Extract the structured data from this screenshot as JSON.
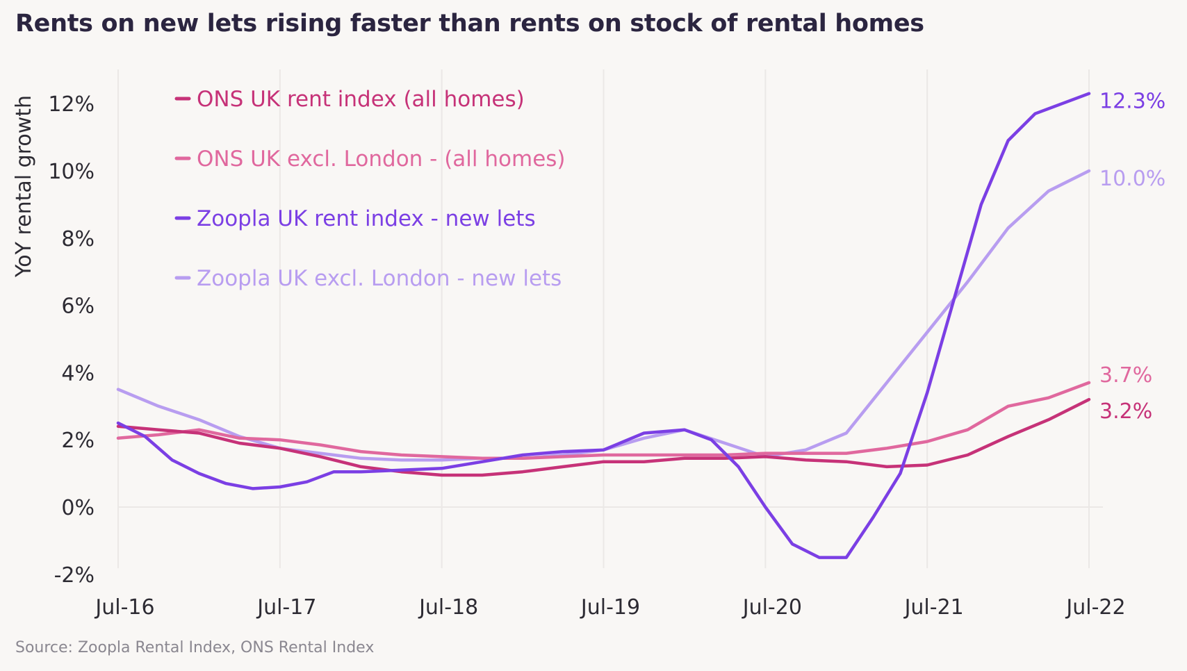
{
  "title": "Rents on new lets rising faster than rents on stock of rental homes",
  "source": "Source: Zoopla Rental Index, ONS Rental Index",
  "chart_data": {
    "type": "line",
    "title": "Rents on new lets rising faster than rents on stock of rental homes",
    "ylabel": "YoY rental growth",
    "xlabel": "",
    "x_ticks": [
      "Jul-16",
      "Jul-17",
      "Jul-18",
      "Jul-19",
      "Jul-20",
      "Jul-21",
      "Jul-22"
    ],
    "y_ticks": [
      "-2%",
      "0%",
      "2%",
      "4%",
      "6%",
      "8%",
      "10%",
      "12%"
    ],
    "ylim": [
      -2,
      12.8
    ],
    "xlim": [
      "2016-07",
      "2022-07"
    ],
    "grid": "vertical",
    "legend_position": "top-left",
    "series": [
      {
        "name": "ONS UK rent index (all homes)",
        "color": "#c63278",
        "end_label": "3.2%",
        "points": [
          [
            "2016-07",
            2.4
          ],
          [
            "2016-10",
            2.3
          ],
          [
            "2017-01",
            2.2
          ],
          [
            "2017-04",
            1.9
          ],
          [
            "2017-07",
            1.75
          ],
          [
            "2017-10",
            1.5
          ],
          [
            "2018-01",
            1.2
          ],
          [
            "2018-04",
            1.05
          ],
          [
            "2018-07",
            0.95
          ],
          [
            "2018-10",
            0.95
          ],
          [
            "2019-01",
            1.05
          ],
          [
            "2019-04",
            1.2
          ],
          [
            "2019-07",
            1.35
          ],
          [
            "2019-10",
            1.35
          ],
          [
            "2020-01",
            1.45
          ],
          [
            "2020-04",
            1.45
          ],
          [
            "2020-07",
            1.5
          ],
          [
            "2020-10",
            1.4
          ],
          [
            "2021-01",
            1.35
          ],
          [
            "2021-04",
            1.2
          ],
          [
            "2021-07",
            1.25
          ],
          [
            "2021-10",
            1.55
          ],
          [
            "2022-01",
            2.1
          ],
          [
            "2022-04",
            2.6
          ],
          [
            "2022-07",
            3.2
          ]
        ]
      },
      {
        "name": "ONS UK excl. London - (all homes)",
        "color": "#e0689e",
        "end_label": "3.7%",
        "points": [
          [
            "2016-07",
            2.05
          ],
          [
            "2016-10",
            2.15
          ],
          [
            "2017-01",
            2.3
          ],
          [
            "2017-04",
            2.05
          ],
          [
            "2017-07",
            2.0
          ],
          [
            "2017-10",
            1.85
          ],
          [
            "2018-01",
            1.65
          ],
          [
            "2018-04",
            1.55
          ],
          [
            "2018-07",
            1.5
          ],
          [
            "2018-10",
            1.45
          ],
          [
            "2019-01",
            1.45
          ],
          [
            "2019-04",
            1.5
          ],
          [
            "2019-07",
            1.55
          ],
          [
            "2019-10",
            1.55
          ],
          [
            "2020-01",
            1.55
          ],
          [
            "2020-04",
            1.55
          ],
          [
            "2020-07",
            1.6
          ],
          [
            "2020-10",
            1.6
          ],
          [
            "2021-01",
            1.6
          ],
          [
            "2021-04",
            1.75
          ],
          [
            "2021-07",
            1.95
          ],
          [
            "2021-10",
            2.3
          ],
          [
            "2022-01",
            3.0
          ],
          [
            "2022-04",
            3.25
          ],
          [
            "2022-07",
            3.7
          ]
        ]
      },
      {
        "name": "Zoopla UK rent index - new lets",
        "color": "#7b3fe4",
        "end_label": "12.3%",
        "points": [
          [
            "2016-07",
            2.5
          ],
          [
            "2016-09",
            2.1
          ],
          [
            "2016-11",
            1.4
          ],
          [
            "2017-01",
            1.0
          ],
          [
            "2017-03",
            0.7
          ],
          [
            "2017-05",
            0.55
          ],
          [
            "2017-07",
            0.6
          ],
          [
            "2017-09",
            0.75
          ],
          [
            "2017-11",
            1.05
          ],
          [
            "2018-01",
            1.05
          ],
          [
            "2018-04",
            1.1
          ],
          [
            "2018-07",
            1.15
          ],
          [
            "2018-10",
            1.35
          ],
          [
            "2019-01",
            1.55
          ],
          [
            "2019-04",
            1.65
          ],
          [
            "2019-07",
            1.7
          ],
          [
            "2019-10",
            2.2
          ],
          [
            "2020-01",
            2.3
          ],
          [
            "2020-03",
            2.0
          ],
          [
            "2020-05",
            1.2
          ],
          [
            "2020-07",
            0.0
          ],
          [
            "2020-09",
            -1.1
          ],
          [
            "2020-11",
            -1.5
          ],
          [
            "2021-01",
            -1.5
          ],
          [
            "2021-03",
            -0.3
          ],
          [
            "2021-05",
            1.0
          ],
          [
            "2021-07",
            3.4
          ],
          [
            "2021-09",
            6.2
          ],
          [
            "2021-11",
            9.0
          ],
          [
            "2022-01",
            10.9
          ],
          [
            "2022-03",
            11.7
          ],
          [
            "2022-05",
            12.0
          ],
          [
            "2022-07",
            12.3
          ]
        ]
      },
      {
        "name": "Zoopla UK excl. London - new lets",
        "color": "#b89df0",
        "end_label": "10.0%",
        "points": [
          [
            "2016-07",
            3.5
          ],
          [
            "2016-10",
            3.0
          ],
          [
            "2017-01",
            2.6
          ],
          [
            "2017-04",
            2.1
          ],
          [
            "2017-07",
            1.75
          ],
          [
            "2017-10",
            1.6
          ],
          [
            "2018-01",
            1.45
          ],
          [
            "2018-04",
            1.4
          ],
          [
            "2018-07",
            1.4
          ],
          [
            "2018-10",
            1.45
          ],
          [
            "2019-01",
            1.45
          ],
          [
            "2019-04",
            1.55
          ],
          [
            "2019-07",
            1.7
          ],
          [
            "2019-10",
            2.05
          ],
          [
            "2020-01",
            2.3
          ],
          [
            "2020-04",
            1.9
          ],
          [
            "2020-07",
            1.5
          ],
          [
            "2020-10",
            1.7
          ],
          [
            "2021-01",
            2.2
          ],
          [
            "2021-04",
            3.7
          ],
          [
            "2021-07",
            5.2
          ],
          [
            "2021-10",
            6.7
          ],
          [
            "2022-01",
            8.3
          ],
          [
            "2022-04",
            9.4
          ],
          [
            "2022-07",
            10.0
          ]
        ]
      }
    ]
  }
}
